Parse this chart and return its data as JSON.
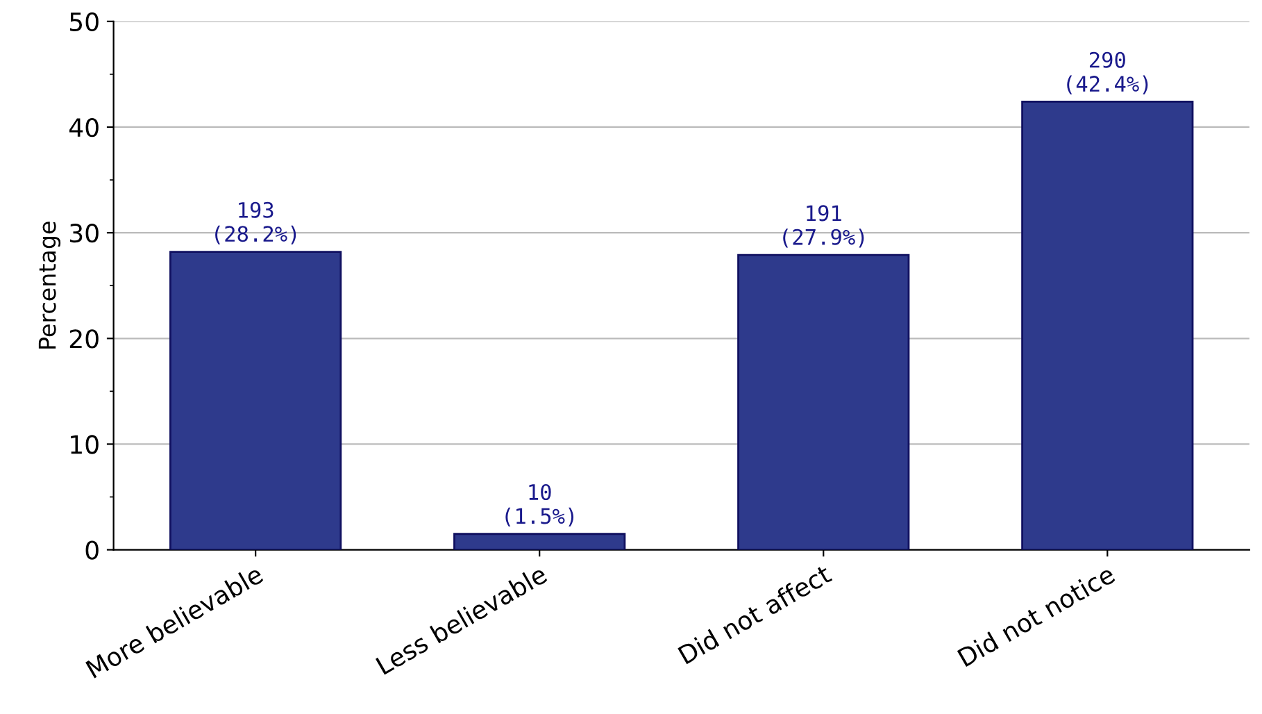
{
  "chart_data": {
    "type": "bar",
    "ylabel": "Percentage",
    "categories": [
      "More believable",
      "Less believable",
      "Did not affect",
      "Did not notice"
    ],
    "values": [
      28.2,
      1.5,
      27.9,
      42.4
    ],
    "value_labels": [
      "193\n(28.2%)",
      "10\n(1.5%)",
      "191\n(27.9%)",
      "290\n(42.4%)"
    ],
    "color": "#2e3a8c",
    "ylim": [
      0,
      50
    ],
    "yticks": [
      0,
      10,
      20,
      30,
      40,
      50
    ],
    "grid": "y"
  }
}
